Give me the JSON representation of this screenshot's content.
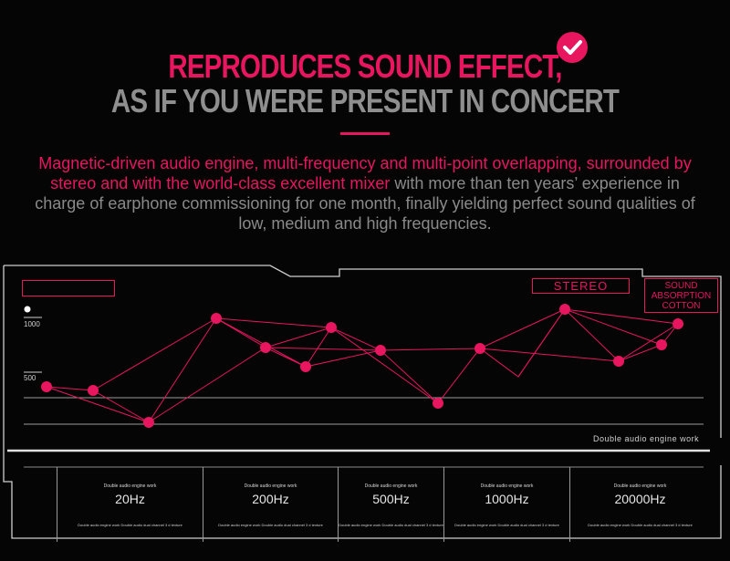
{
  "header": {
    "line1": "REPRODUCES SOUND EFFECT,",
    "line2": "AS IF YOU WERE PRESENT IN CONCERT"
  },
  "description": {
    "highlight": "Magnetic-driven audio engine, multi-frequency and multi-point overlapping, surrounded by stereo and with the world-class excellent mixer",
    "rest": " with more than ten years’ experience in charge of earphone commissioning for one month, finally yielding perfect sound qualities of low, medium and high frequencies."
  },
  "panel": {
    "y_tick_high": "1000",
    "y_tick_low": "500",
    "stereo_label": "STEREO",
    "sound_label": "SOUND ABSORPTION COTTON",
    "engine_tag": "Double audio engine work"
  },
  "frequencies": [
    {
      "title": "Double audio engine work",
      "value": "20Hz",
      "note": "Double audio engine work Double audio dual channel 3 d texture"
    },
    {
      "title": "Double audio engine work",
      "value": "200Hz",
      "note": "Double audio engine work Double audio dual channel 3 d texture"
    },
    {
      "title": "Double audio engine work",
      "value": "500Hz",
      "note": "Double audio engine work Double audio dual channel 3 d texture"
    },
    {
      "title": "Double audio engine work",
      "value": "1000Hz",
      "note": "Double audio engine work Double audio dual channel 3 d texture"
    },
    {
      "title": "Double audio engine work",
      "value": "20000Hz",
      "note": "Double audio engine work Double audio dual channel 3 d texture"
    }
  ],
  "colors": {
    "accent": "#e8155f",
    "muted_text": "#8a8a8a",
    "line": "#cfcfcf"
  },
  "icons": {
    "badge": "checkmark-icon"
  }
}
